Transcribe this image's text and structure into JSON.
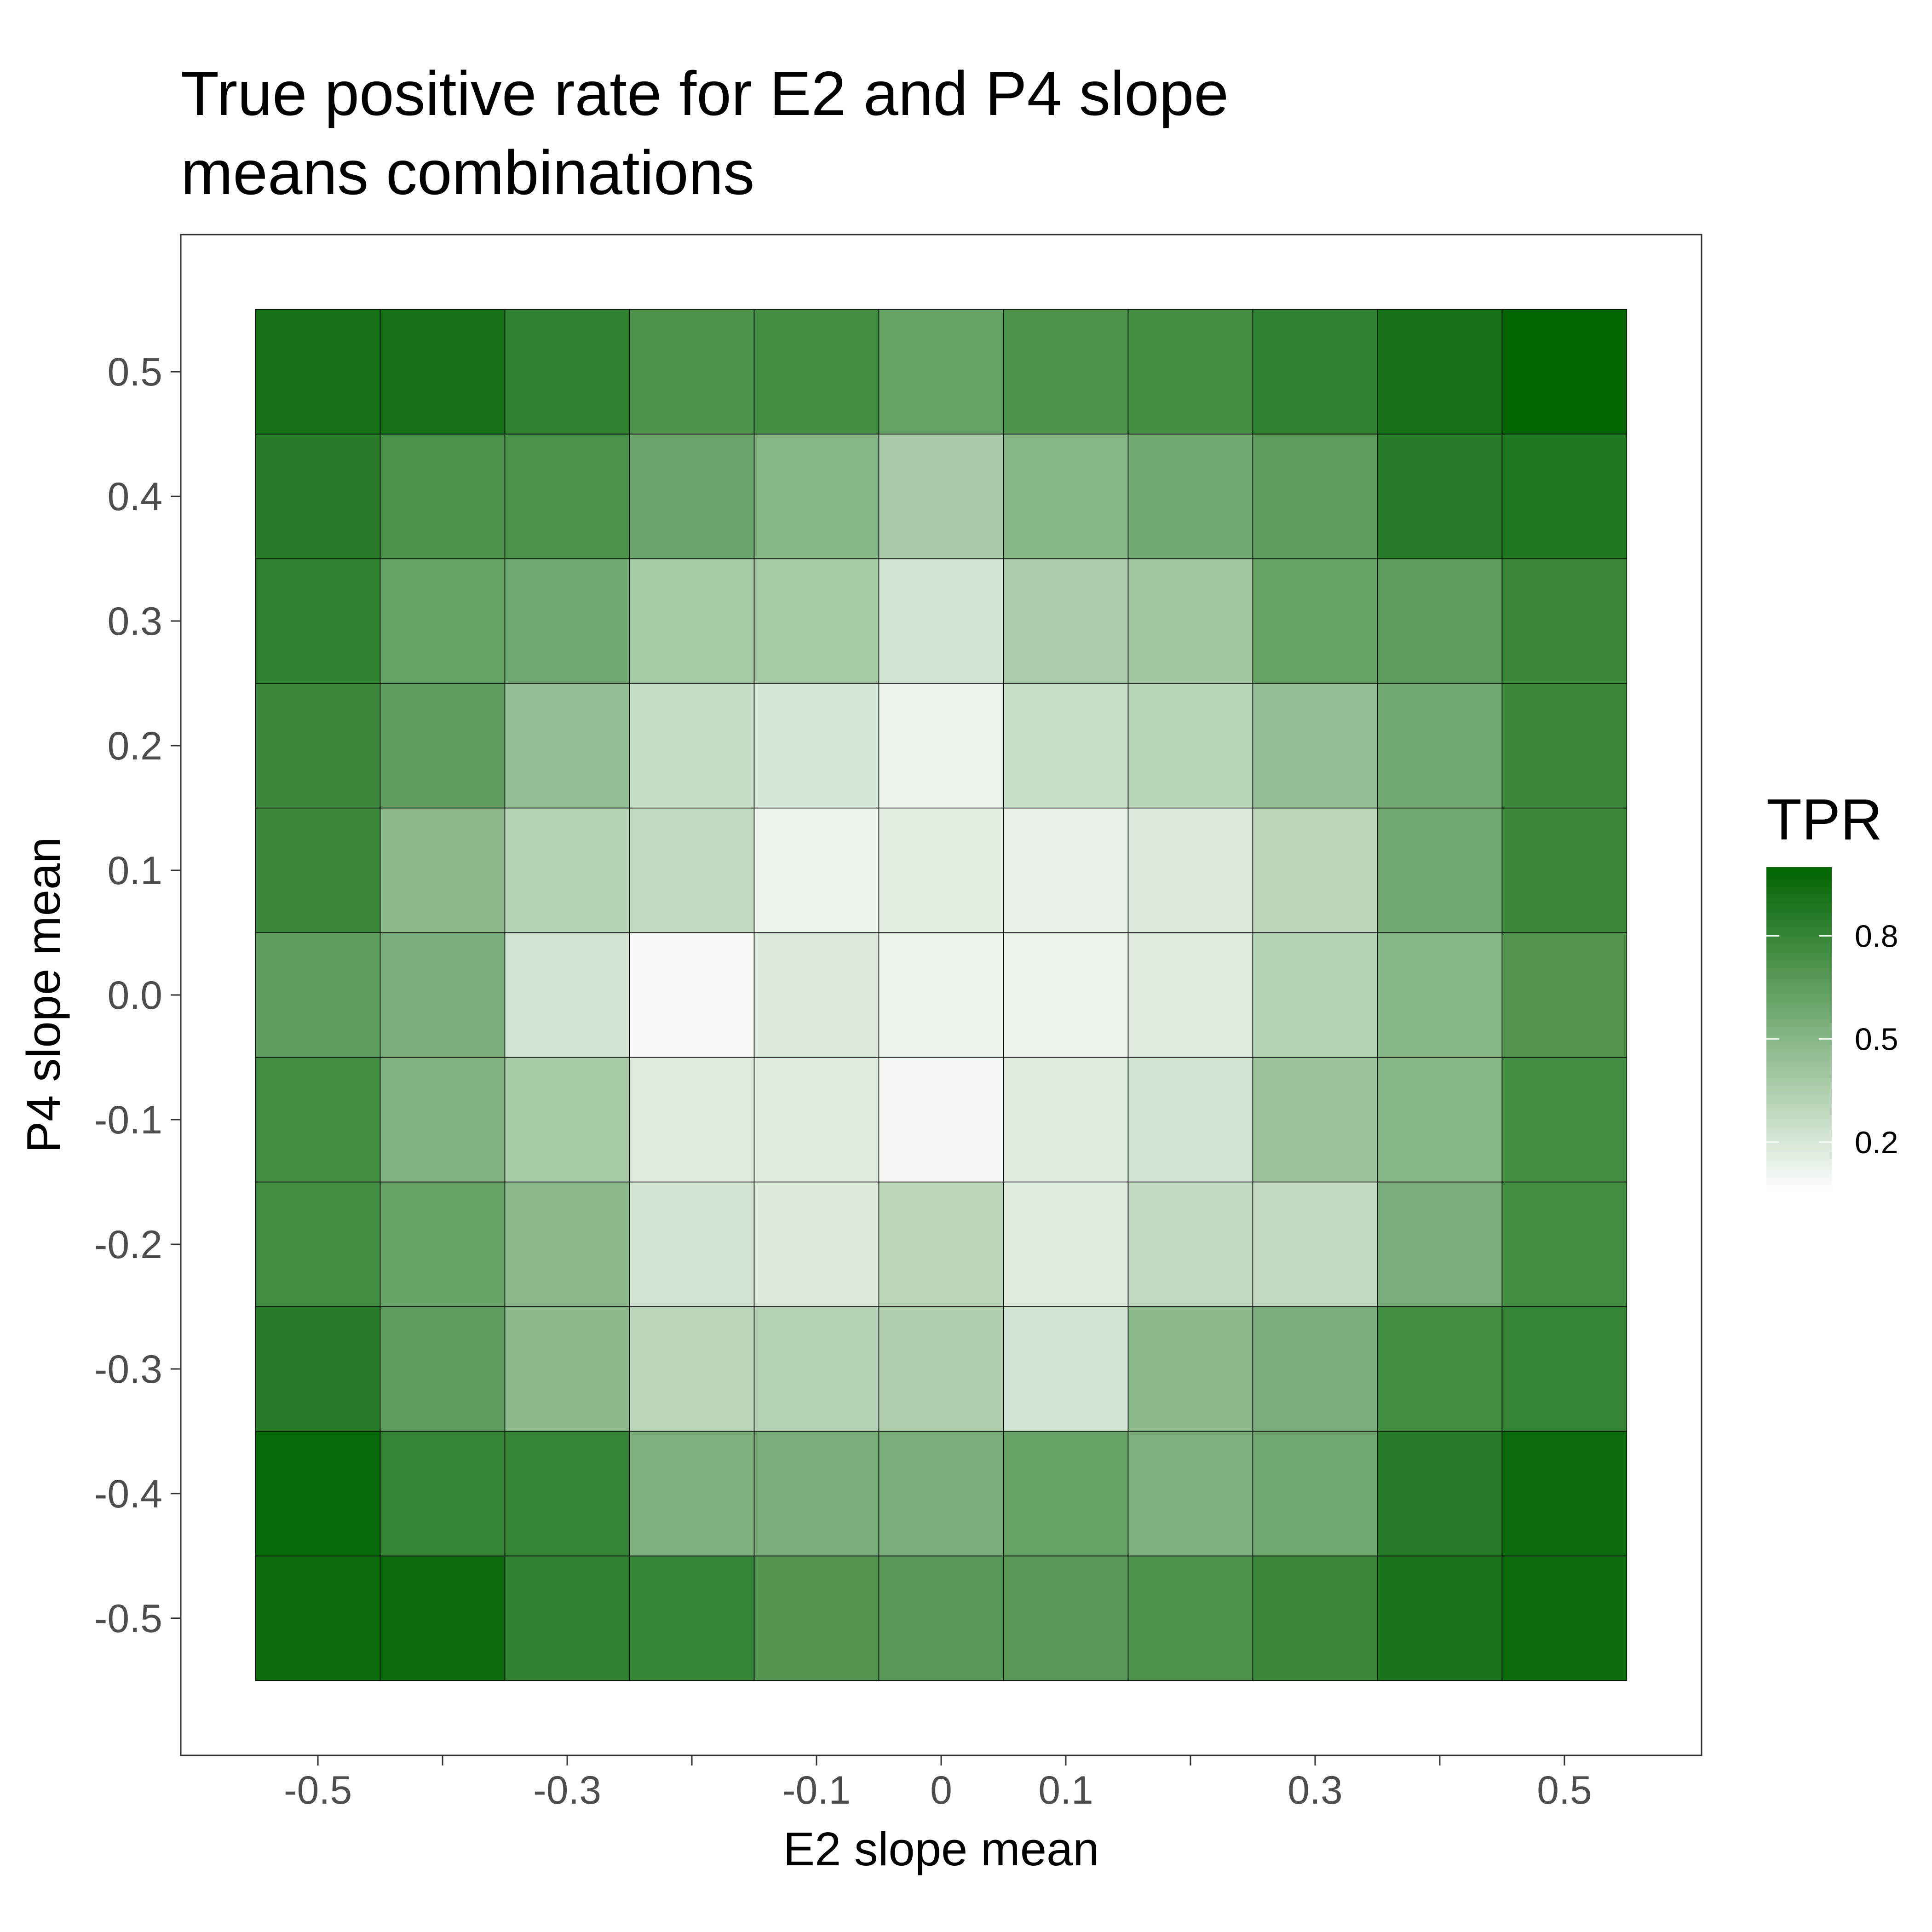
{
  "chart_data": {
    "type": "heatmap",
    "title_lines": [
      "True positive rate for E2 and P4 slope",
      "means combinations"
    ],
    "xlabel": "E2 slope mean",
    "ylabel": "P4 slope mean",
    "x": [
      -0.5,
      -0.4,
      -0.3,
      -0.2,
      -0.1,
      0,
      0.1,
      0.2,
      0.3,
      0.4,
      0.5
    ],
    "y": [
      -0.5,
      -0.4,
      -0.3,
      -0.2,
      -0.1,
      0.0,
      0.1,
      0.2,
      0.3,
      0.4,
      0.5
    ],
    "xticks": [
      -0.5,
      -0.4,
      -0.3,
      -0.2,
      -0.1,
      0,
      0.1,
      0.2,
      0.3,
      0.4,
      0.5
    ],
    "xtick_labels": [
      "-0.5",
      "",
      "-0.3",
      "",
      "-0.1",
      "0",
      "0.1",
      "",
      "0.3",
      "",
      "0.5"
    ],
    "yticks": [
      -0.5,
      -0.4,
      -0.3,
      -0.2,
      -0.1,
      0.0,
      0.1,
      0.2,
      0.3,
      0.4,
      0.5
    ],
    "ytick_labels": [
      "-0.5",
      "-0.4",
      "-0.3",
      "-0.2",
      "-0.1",
      "0.0",
      "0.1",
      "0.2",
      "0.3",
      "0.4",
      "0.5"
    ],
    "xlim": [
      -0.61,
      0.61
    ],
    "ylim": [
      -0.61,
      0.61
    ],
    "values_note": "rows ordered by y ascending (-0.5 first), columns by x ascending",
    "values": [
      [
        0.95,
        0.95,
        0.82,
        0.8,
        0.7,
        0.68,
        0.68,
        0.72,
        0.78,
        0.9,
        0.95
      ],
      [
        0.97,
        0.8,
        0.8,
        0.53,
        0.55,
        0.55,
        0.62,
        0.53,
        0.58,
        0.85,
        0.95
      ],
      [
        0.85,
        0.65,
        0.48,
        0.3,
        0.32,
        0.35,
        0.22,
        0.48,
        0.55,
        0.75,
        0.8
      ],
      [
        0.75,
        0.62,
        0.48,
        0.22,
        0.18,
        0.3,
        0.17,
        0.28,
        0.28,
        0.55,
        0.75
      ],
      [
        0.75,
        0.52,
        0.38,
        0.17,
        0.17,
        0.09,
        0.17,
        0.22,
        0.42,
        0.5,
        0.75
      ],
      [
        0.65,
        0.55,
        0.22,
        0.08,
        0.18,
        0.12,
        0.12,
        0.17,
        0.32,
        0.5,
        0.7
      ],
      [
        0.78,
        0.48,
        0.32,
        0.28,
        0.12,
        0.15,
        0.13,
        0.18,
        0.3,
        0.58,
        0.78
      ],
      [
        0.78,
        0.65,
        0.45,
        0.27,
        0.2,
        0.12,
        0.25,
        0.31,
        0.45,
        0.58,
        0.78
      ],
      [
        0.82,
        0.62,
        0.58,
        0.38,
        0.38,
        0.22,
        0.36,
        0.4,
        0.62,
        0.65,
        0.78
      ],
      [
        0.85,
        0.72,
        0.72,
        0.6,
        0.5,
        0.37,
        0.5,
        0.58,
        0.65,
        0.85,
        0.88
      ],
      [
        0.92,
        0.92,
        0.82,
        0.72,
        0.75,
        0.62,
        0.72,
        0.75,
        0.82,
        0.92,
        0.99
      ]
    ],
    "legend": {
      "title": "TPR",
      "ticks": [
        0.8,
        0.5,
        0.2
      ],
      "tick_labels": [
        "0.8",
        "0.5",
        "0.2"
      ],
      "range": [
        0.05,
        1.0
      ],
      "low_color": "#ffffff",
      "high_color": "#006400",
      "position": "right"
    },
    "grid": false,
    "panel_border": true
  }
}
